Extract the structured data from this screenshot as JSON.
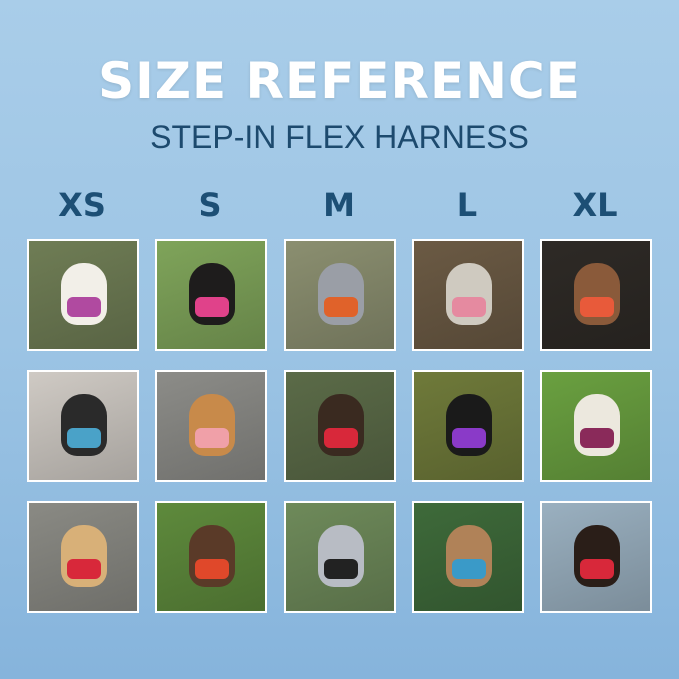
{
  "header": {
    "title": "SIZE REFERENCE",
    "subtitle": "STEP-IN FLEX HARNESS"
  },
  "sizes": [
    "XS",
    "S",
    "M",
    "L",
    "XL"
  ],
  "photos": [
    [
      {
        "bg": "#6f7d55",
        "dog": "#f2efe8",
        "harness": "#b04aa0"
      },
      {
        "bg": "#7fa45a",
        "dog": "#1e1c1c",
        "harness": "#e0428a"
      },
      {
        "bg": "#8b8f70",
        "dog": "#9a9ea6",
        "harness": "#e0622a"
      },
      {
        "bg": "#6b5a44",
        "dog": "#cfcac0",
        "harness": "#e58aa0"
      },
      {
        "bg": "#2e2a26",
        "dog": "#8a5a3a",
        "harness": "#e85a3a"
      }
    ],
    [
      {
        "bg": "#cfcac4",
        "dog": "#2a2a2a",
        "harness": "#4aa2c8"
      },
      {
        "bg": "#8c8c88",
        "dog": "#c88a4a",
        "harness": "#f0a0a8"
      },
      {
        "bg": "#5b6b48",
        "dog": "#3a2a20",
        "harness": "#d8283a"
      },
      {
        "bg": "#6f7a3a",
        "dog": "#1a1a1a",
        "harness": "#8a3ac8"
      },
      {
        "bg": "#6aa040",
        "dog": "#ece8de",
        "harness": "#8a2a5a"
      }
    ],
    [
      {
        "bg": "#8a8a84",
        "dog": "#d8b078",
        "harness": "#d8283a"
      },
      {
        "bg": "#5e8a3c",
        "dog": "#5a3a28",
        "harness": "#e0482a"
      },
      {
        "bg": "#6e8a5a",
        "dog": "#b8bcc4",
        "harness": "#222222"
      },
      {
        "bg": "#3e6a3a",
        "dog": "#b08258",
        "harness": "#3a9ac8"
      },
      {
        "bg": "#9ab0c0",
        "dog": "#2a1e18",
        "harness": "#d8283a"
      }
    ]
  ]
}
